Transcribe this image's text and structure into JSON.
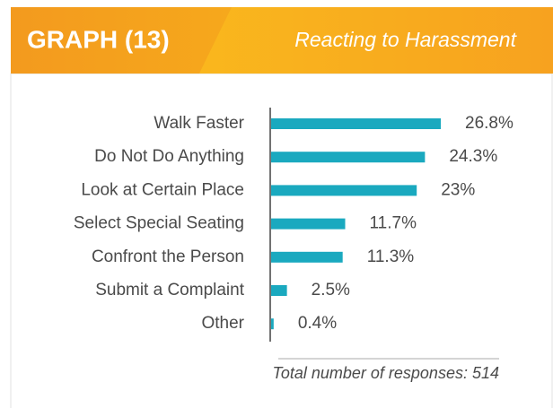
{
  "chart_data": {
    "type": "bar",
    "orientation": "horizontal",
    "header_label": "GRAPH (13)",
    "title": "Reacting to Harassment",
    "categories": [
      "Walk Faster",
      "Do Not Do Anything",
      "Look at Certain Place",
      "Select Special Seating",
      "Confront the Person",
      "Submit a Complaint",
      "Other"
    ],
    "values": [
      26.8,
      24.3,
      23,
      11.7,
      11.3,
      2.5,
      0.4
    ],
    "value_labels": [
      "26.8%",
      "24.3%",
      "23%",
      "11.7%",
      "11.3%",
      "2.5%",
      "0.4%"
    ],
    "color": "#1aa9bf",
    "note": "Total number of responses: 514"
  }
}
